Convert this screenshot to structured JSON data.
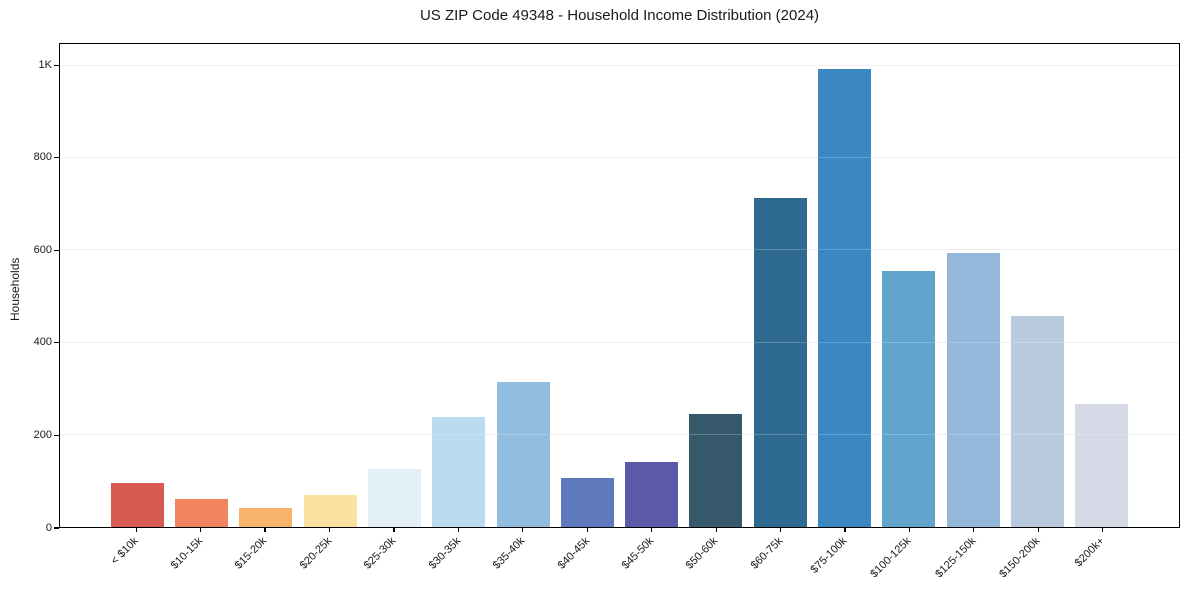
{
  "page": {
    "background": "#ffffff",
    "text_color": "#1a1a1a",
    "spine_color": "#000000",
    "grid_color": "#e9e9e9"
  },
  "chart_data": {
    "type": "bar",
    "title": "US ZIP Code 49348 - Household Income Distribution (2024)",
    "xlabel": "",
    "ylabel": "Households",
    "categories": [
      "< $10k",
      "$10-15k",
      "$15-20k",
      "$20-25k",
      "$25-30k",
      "$30-35k",
      "$35-40k",
      "$40-45k",
      "$45-50k",
      "$50-60k",
      "$60-75k",
      "$75-100k",
      "$100-125k",
      "$125-150k",
      "$150-200k",
      "$200k+"
    ],
    "values": [
      96,
      61,
      42,
      69,
      126,
      238,
      315,
      107,
      141,
      246,
      713,
      993,
      556,
      594,
      458,
      266
    ],
    "bar_colors": [
      "#d65a52",
      "#f0845f",
      "#f7b36a",
      "#fbe2a0",
      "#e3f0f7",
      "#b9dcee",
      "#92bdde",
      "#5f79bd",
      "#5c59a9",
      "#35596b",
      "#2f6b91",
      "#3a87c1",
      "#61a5cd",
      "#93b8da",
      "#b9cade",
      "#d6dae6"
    ],
    "ylim": [
      0,
      1048
    ],
    "yticks": [
      {
        "value": 0,
        "label": "0"
      },
      {
        "value": 200,
        "label": "200"
      },
      {
        "value": 400,
        "label": "400"
      },
      {
        "value": 600,
        "label": "600"
      },
      {
        "value": 800,
        "label": "800"
      },
      {
        "value": 1000,
        "label": "1K"
      }
    ],
    "grid": "horizontal",
    "legend": "none",
    "bar_width_ratio": 0.82
  }
}
